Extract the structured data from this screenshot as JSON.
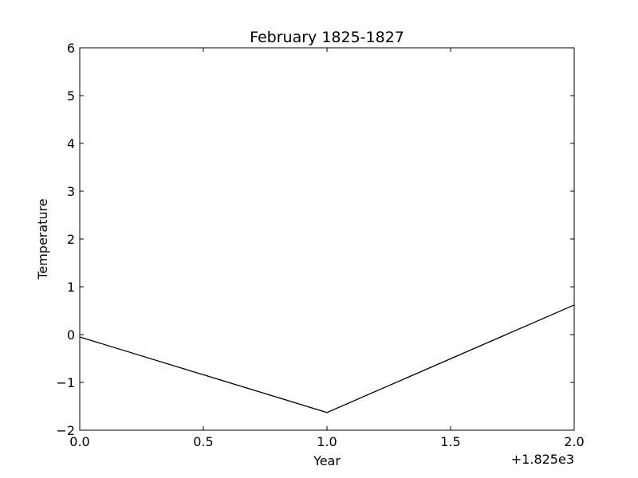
{
  "chart_data": {
    "type": "line",
    "title": "February 1825-1827",
    "xlabel": "Year",
    "ylabel": "Temperature",
    "x_offset_label": "+1.825e3",
    "x": [
      0.0,
      1.0,
      2.0
    ],
    "series": [
      {
        "values": [
          -0.05,
          -1.63,
          0.62
        ],
        "color": "#000000"
      }
    ],
    "xlim": [
      0.0,
      2.0
    ],
    "ylim": [
      -2,
      6
    ],
    "x_ticks": [
      0.0,
      0.5,
      1.0,
      1.5,
      2.0
    ],
    "x_tick_labels": [
      "0.0",
      "0.5",
      "1.0",
      "1.5",
      "2.0"
    ],
    "y_ticks": [
      -2,
      -1,
      0,
      1,
      2,
      3,
      4,
      5,
      6
    ],
    "y_tick_labels": [
      "−2",
      "−1",
      "0",
      "1",
      "2",
      "3",
      "4",
      "5",
      "6"
    ],
    "grid": false,
    "legend": "none"
  }
}
